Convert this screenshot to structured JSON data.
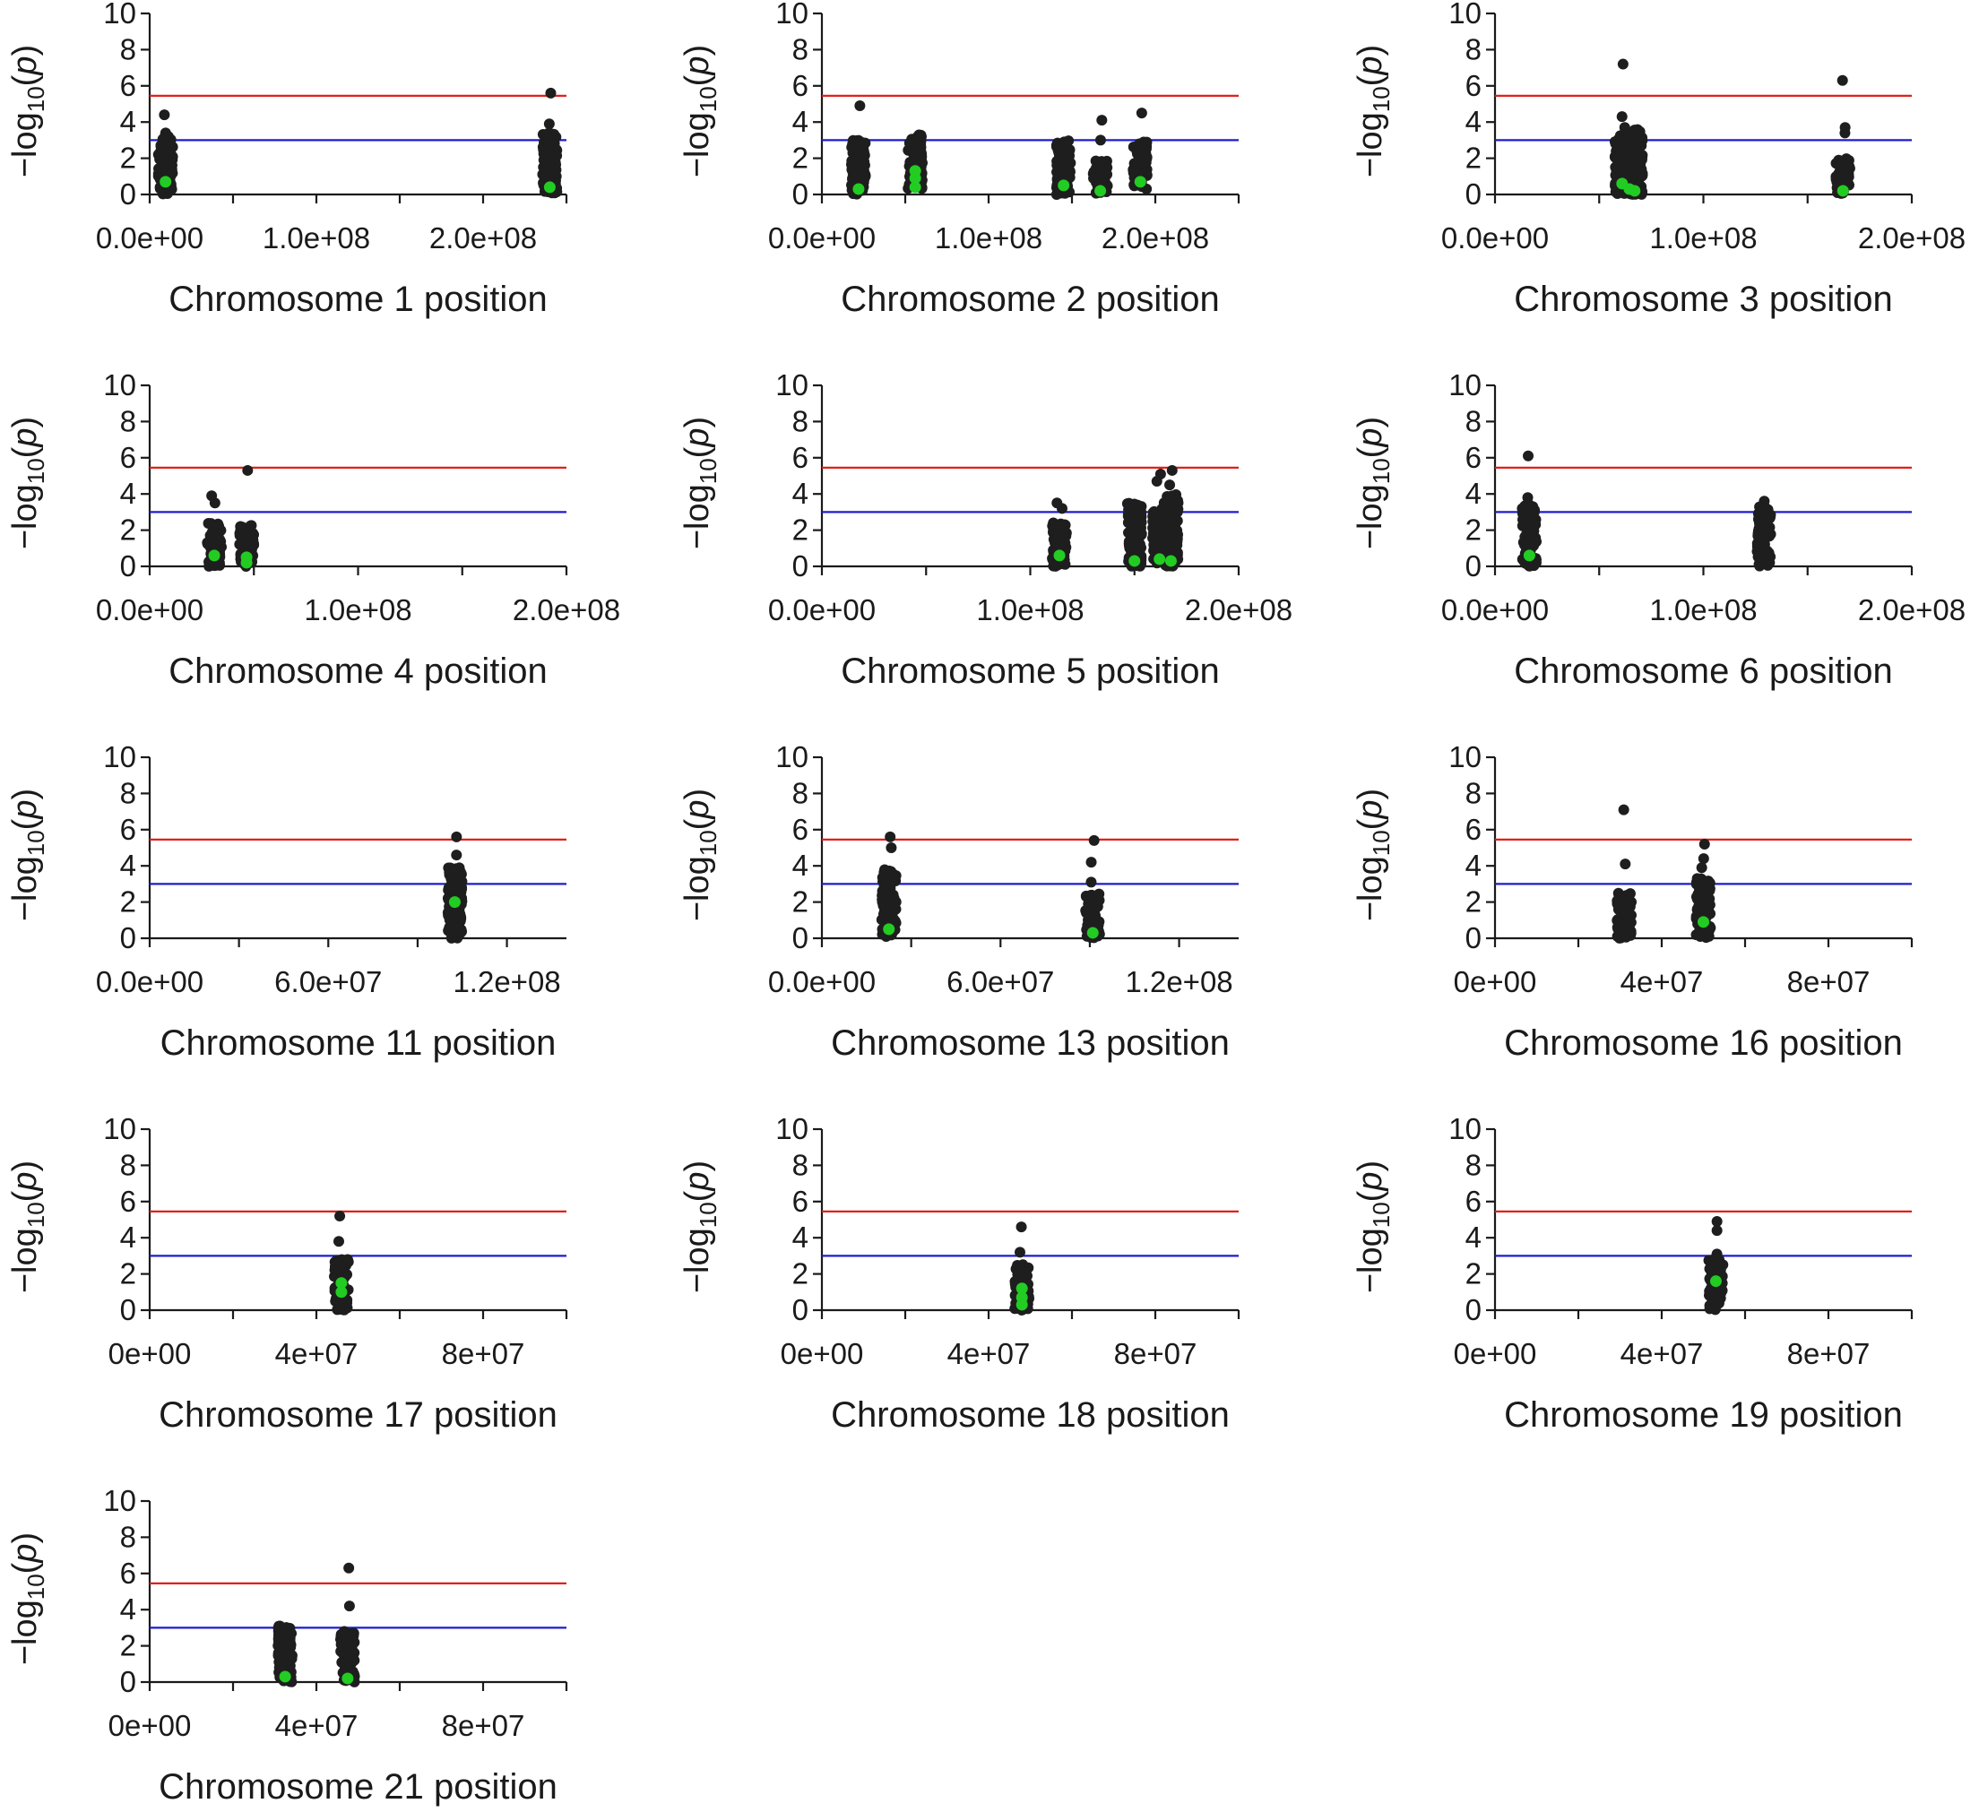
{
  "figure": {
    "y_label_prefix": "−log",
    "y_label_sub": "10",
    "y_label_open": "(",
    "y_label_p": "p",
    "y_label_close": ")"
  },
  "colors": {
    "threshold_high": "#e0201b",
    "threshold_low": "#1c1ccf",
    "point": "#1e1e1e",
    "highlight": "#22cc22"
  },
  "chart_data": [
    {
      "type": "scatter",
      "title": "",
      "xlabel": "Chromosome 1 position",
      "ylabel": "−log10(p)",
      "xlim": [
        0,
        250000000
      ],
      "ylim": [
        0,
        10
      ],
      "xticks": [
        0,
        100000000,
        200000000
      ],
      "xtick_labels": [
        "0.0e+00",
        "1.0e+08",
        "2.0e+08"
      ],
      "yticks": [
        0,
        2,
        4,
        6,
        8,
        10
      ],
      "thresholds": [
        5.45,
        3.0
      ],
      "clusters": [
        {
          "x": 9500000,
          "min": 0,
          "max": 3.3,
          "top": [
            4.4,
            3.4
          ]
        },
        {
          "x": 240000000,
          "min": 0,
          "max": 3.4,
          "top": [
            5.6,
            3.9
          ]
        }
      ],
      "highlight_points": [
        {
          "x": 9500000,
          "y": 0.7
        },
        {
          "x": 240000000,
          "y": 0.4
        }
      ]
    },
    {
      "type": "scatter",
      "title": "",
      "xlabel": "Chromosome 2 position",
      "ylabel": "−log10(p)",
      "xlim": [
        0,
        250000000
      ],
      "ylim": [
        0,
        10
      ],
      "xticks": [
        0,
        100000000,
        200000000
      ],
      "xtick_labels": [
        "0.0e+00",
        "1.0e+08",
        "2.0e+08"
      ],
      "yticks": [
        0,
        2,
        4,
        6,
        8,
        10
      ],
      "thresholds": [
        5.45,
        3.0
      ],
      "clusters": [
        {
          "x": 22000000,
          "min": 0,
          "max": 3.1,
          "top": [
            4.9
          ]
        },
        {
          "x": 56000000,
          "min": 0.3,
          "max": 3.3,
          "top": []
        },
        {
          "x": 145000000,
          "min": 0,
          "max": 3.1,
          "top": []
        },
        {
          "x": 167000000,
          "min": 0,
          "max": 1.9,
          "top": [
            4.1,
            3.0
          ]
        },
        {
          "x": 191000000,
          "min": 0.3,
          "max": 3.0,
          "top": [
            4.5
          ]
        }
      ],
      "highlight_points": [
        {
          "x": 22000000,
          "y": 0.3
        },
        {
          "x": 56000000,
          "y": 1.3
        },
        {
          "x": 56000000,
          "y": 0.9
        },
        {
          "x": 56000000,
          "y": 0.4
        },
        {
          "x": 145000000,
          "y": 0.5
        },
        {
          "x": 167000000,
          "y": 0.2
        },
        {
          "x": 191000000,
          "y": 0.7
        }
      ]
    },
    {
      "type": "scatter",
      "title": "",
      "xlabel": "Chromosome 3 position",
      "ylabel": "−log10(p)",
      "xlim": [
        0,
        200000000
      ],
      "ylim": [
        0,
        10
      ],
      "xticks": [
        0,
        100000000,
        200000000
      ],
      "xtick_labels": [
        "0.0e+00",
        "1.0e+08",
        "2.0e+08"
      ],
      "yticks": [
        0,
        2,
        4,
        6,
        8,
        10
      ],
      "thresholds": [
        5.45,
        3.0
      ],
      "clusters": [
        {
          "x": 61000000,
          "min": 0,
          "max": 3.3,
          "top": [
            7.2,
            4.3,
            3.7
          ]
        },
        {
          "x": 64500000,
          "min": 0,
          "max": 3.5,
          "top": []
        },
        {
          "x": 67500000,
          "min": 0,
          "max": 3.6,
          "top": []
        },
        {
          "x": 167000000,
          "min": 0,
          "max": 2.0,
          "top": [
            6.3,
            3.7,
            3.4
          ]
        }
      ],
      "highlight_points": [
        {
          "x": 61000000,
          "y": 0.6
        },
        {
          "x": 64500000,
          "y": 0.3
        },
        {
          "x": 67000000,
          "y": 0.2
        },
        {
          "x": 167000000,
          "y": 0.2
        }
      ]
    },
    {
      "type": "scatter",
      "title": "",
      "xlabel": "Chromosome 4 position",
      "ylabel": "−log10(p)",
      "xlim": [
        0,
        200000000
      ],
      "ylim": [
        0,
        10
      ],
      "xticks": [
        0,
        100000000,
        200000000
      ],
      "xtick_labels": [
        "0.0e+00",
        "1.0e+08",
        "2.0e+08"
      ],
      "yticks": [
        0,
        2,
        4,
        6,
        8,
        10
      ],
      "thresholds": [
        5.45,
        3.0
      ],
      "clusters": [
        {
          "x": 31000000,
          "min": 0,
          "max": 2.4,
          "top": [
            3.9,
            3.5
          ]
        },
        {
          "x": 46500000,
          "min": 0,
          "max": 2.3,
          "top": [
            5.3
          ]
        }
      ],
      "highlight_points": [
        {
          "x": 31000000,
          "y": 0.6
        },
        {
          "x": 46500000,
          "y": 0.5
        },
        {
          "x": 46500000,
          "y": 0.2
        }
      ]
    },
    {
      "type": "scatter",
      "title": "",
      "xlabel": "Chromosome 5 position",
      "ylabel": "−log10(p)",
      "xlim": [
        0,
        200000000
      ],
      "ylim": [
        0,
        10
      ],
      "xticks": [
        0,
        100000000,
        200000000
      ],
      "xtick_labels": [
        "0.0e+00",
        "1.0e+08",
        "2.0e+08"
      ],
      "yticks": [
        0,
        2,
        4,
        6,
        8,
        10
      ],
      "thresholds": [
        5.45,
        3.0
      ],
      "clusters": [
        {
          "x": 114000000,
          "min": 0,
          "max": 2.4,
          "top": [
            3.5,
            3.2
          ]
        },
        {
          "x": 150000000,
          "min": 0,
          "max": 3.5,
          "top": []
        },
        {
          "x": 162000000,
          "min": 0,
          "max": 3.3,
          "top": [
            5.1,
            4.7
          ]
        },
        {
          "x": 167500000,
          "min": 0,
          "max": 4.0,
          "top": [
            5.3,
            4.5
          ]
        }
      ],
      "highlight_points": [
        {
          "x": 114000000,
          "y": 0.6
        },
        {
          "x": 150000000,
          "y": 0.3
        },
        {
          "x": 162000000,
          "y": 0.4
        },
        {
          "x": 167500000,
          "y": 0.3
        }
      ]
    },
    {
      "type": "scatter",
      "title": "",
      "xlabel": "Chromosome 6 position",
      "ylabel": "−log10(p)",
      "xlim": [
        0,
        200000000
      ],
      "ylim": [
        0,
        10
      ],
      "xticks": [
        0,
        100000000,
        200000000
      ],
      "xtick_labels": [
        "0.0e+00",
        "1.0e+08",
        "2.0e+08"
      ],
      "yticks": [
        0,
        2,
        4,
        6,
        8,
        10
      ],
      "thresholds": [
        5.45,
        3.0
      ],
      "clusters": [
        {
          "x": 16500000,
          "min": 0,
          "max": 3.4,
          "top": [
            6.1,
            3.8
          ]
        },
        {
          "x": 129000000,
          "min": 0,
          "max": 3.3,
          "top": [
            3.6
          ]
        }
      ],
      "highlight_points": [
        {
          "x": 16500000,
          "y": 0.6
        }
      ]
    },
    {
      "type": "scatter",
      "title": "",
      "xlabel": "Chromosome 11 position",
      "ylabel": "−log10(p)",
      "xlim": [
        0,
        140000000
      ],
      "ylim": [
        0,
        10
      ],
      "xticks": [
        0,
        60000000,
        120000000
      ],
      "xtick_labels": [
        "0.0e+00",
        "6.0e+07",
        "1.2e+08"
      ],
      "yticks": [
        0,
        2,
        4,
        6,
        8,
        10
      ],
      "thresholds": [
        5.45,
        3.0
      ],
      "clusters": [
        {
          "x": 102500000,
          "min": 0,
          "max": 3.9,
          "top": [
            5.6,
            4.6
          ]
        }
      ],
      "highlight_points": [
        {
          "x": 102500000,
          "y": 2.0
        }
      ]
    },
    {
      "type": "scatter",
      "title": "",
      "xlabel": "Chromosome 13 position",
      "ylabel": "−log10(p)",
      "xlim": [
        0,
        140000000
      ],
      "ylim": [
        0,
        10
      ],
      "xticks": [
        0,
        60000000,
        120000000
      ],
      "xtick_labels": [
        "0.0e+00",
        "6.0e+07",
        "1.2e+08"
      ],
      "yticks": [
        0,
        2,
        4,
        6,
        8,
        10
      ],
      "thresholds": [
        5.45,
        3.0
      ],
      "clusters": [
        {
          "x": 22500000,
          "min": 0,
          "max": 3.8,
          "top": [
            5.6,
            5.0
          ]
        },
        {
          "x": 91000000,
          "min": 0,
          "max": 2.5,
          "top": [
            5.4,
            4.2,
            3.1
          ]
        }
      ],
      "highlight_points": [
        {
          "x": 22500000,
          "y": 0.5
        },
        {
          "x": 91000000,
          "y": 0.3
        }
      ]
    },
    {
      "type": "scatter",
      "title": "",
      "xlabel": "Chromosome 16 position",
      "ylabel": "−log10(p)",
      "xlim": [
        0,
        100000000
      ],
      "ylim": [
        0,
        10
      ],
      "xticks": [
        0,
        40000000,
        80000000
      ],
      "xtick_labels": [
        "0e+00",
        "4e+07",
        "8e+07"
      ],
      "yticks": [
        0,
        2,
        4,
        6,
        8,
        10
      ],
      "thresholds": [
        5.45,
        3.0
      ],
      "clusters": [
        {
          "x": 31000000,
          "min": 0,
          "max": 2.5,
          "top": [
            7.1,
            4.1
          ]
        },
        {
          "x": 50000000,
          "min": 0,
          "max": 3.3,
          "top": [
            5.2,
            4.4,
            3.9
          ]
        }
      ],
      "highlight_points": [
        {
          "x": 50000000,
          "y": 0.9
        }
      ]
    },
    {
      "type": "scatter",
      "title": "",
      "xlabel": "Chromosome 17 position",
      "ylabel": "−log10(p)",
      "xlim": [
        0,
        100000000
      ],
      "ylim": [
        0,
        10
      ],
      "xticks": [
        0,
        40000000,
        80000000
      ],
      "xtick_labels": [
        "0e+00",
        "4e+07",
        "8e+07"
      ],
      "yticks": [
        0,
        2,
        4,
        6,
        8,
        10
      ],
      "thresholds": [
        5.45,
        3.0
      ],
      "clusters": [
        {
          "x": 46000000,
          "min": 0,
          "max": 2.8,
          "top": [
            5.2,
            3.8
          ]
        }
      ],
      "highlight_points": [
        {
          "x": 46000000,
          "y": 1.5
        },
        {
          "x": 46000000,
          "y": 1.0
        }
      ]
    },
    {
      "type": "scatter",
      "title": "",
      "xlabel": "Chromosome 18 position",
      "ylabel": "−log10(p)",
      "xlim": [
        0,
        100000000
      ],
      "ylim": [
        0,
        10
      ],
      "xticks": [
        0,
        40000000,
        80000000
      ],
      "xtick_labels": [
        "0e+00",
        "4e+07",
        "8e+07"
      ],
      "yticks": [
        0,
        2,
        4,
        6,
        8,
        10
      ],
      "thresholds": [
        5.45,
        3.0
      ],
      "clusters": [
        {
          "x": 48000000,
          "min": 0,
          "max": 2.6,
          "top": [
            4.6,
            3.2
          ]
        }
      ],
      "highlight_points": [
        {
          "x": 48000000,
          "y": 1.2
        },
        {
          "x": 48000000,
          "y": 0.7
        },
        {
          "x": 48000000,
          "y": 0.3
        }
      ]
    },
    {
      "type": "scatter",
      "title": "",
      "xlabel": "Chromosome 19 position",
      "ylabel": "−log10(p)",
      "xlim": [
        0,
        100000000
      ],
      "ylim": [
        0,
        10
      ],
      "xticks": [
        0,
        40000000,
        80000000
      ],
      "xtick_labels": [
        "0e+00",
        "4e+07",
        "8e+07"
      ],
      "yticks": [
        0,
        2,
        4,
        6,
        8,
        10
      ],
      "thresholds": [
        5.45,
        3.0
      ],
      "clusters": [
        {
          "x": 53000000,
          "min": 0,
          "max": 2.9,
          "top": [
            4.9,
            4.4,
            3.1
          ]
        }
      ],
      "highlight_points": [
        {
          "x": 53000000,
          "y": 1.6
        }
      ]
    },
    {
      "type": "scatter",
      "title": "",
      "xlabel": "Chromosome 21 position",
      "ylabel": "−log10(p)",
      "xlim": [
        0,
        100000000
      ],
      "ylim": [
        0,
        10
      ],
      "xticks": [
        0,
        40000000,
        80000000
      ],
      "xtick_labels": [
        "0e+00",
        "4e+07",
        "8e+07"
      ],
      "yticks": [
        0,
        2,
        4,
        6,
        8,
        10
      ],
      "thresholds": [
        5.45,
        3.0
      ],
      "clusters": [
        {
          "x": 32500000,
          "min": 0,
          "max": 3.1,
          "top": []
        },
        {
          "x": 47500000,
          "min": 0,
          "max": 2.8,
          "top": [
            6.3,
            4.2
          ]
        }
      ],
      "highlight_points": [
        {
          "x": 32500000,
          "y": 0.3
        },
        {
          "x": 47500000,
          "y": 0.2
        }
      ]
    }
  ]
}
